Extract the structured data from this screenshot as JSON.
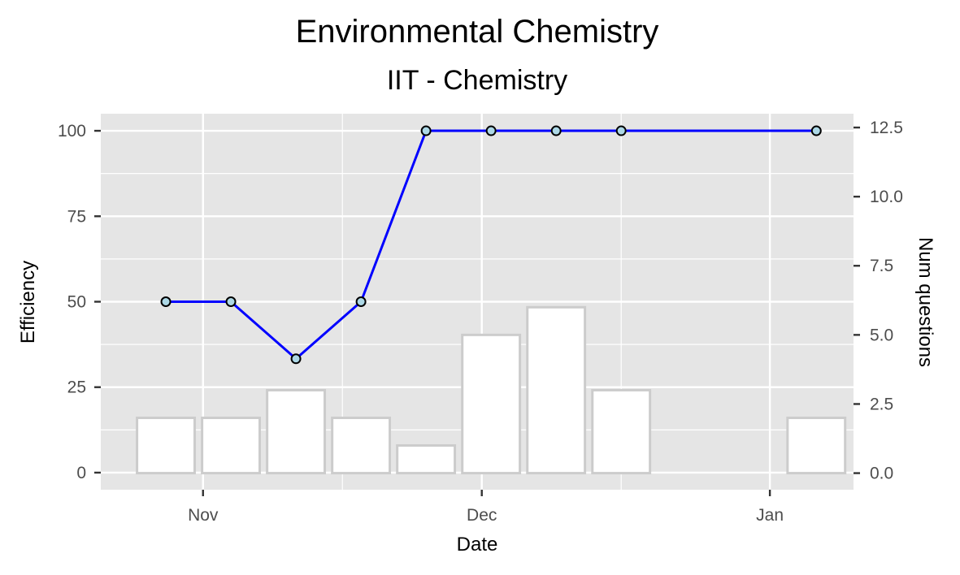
{
  "chart_data": {
    "type": "bar+line",
    "title": "Environmental Chemistry",
    "subtitle": "IIT - Chemistry",
    "xlabel": "Date",
    "ylabel_left": "Efficiency",
    "ylabel_right": "Num questions",
    "x_ticks": [
      "Nov",
      "Dec",
      "Jan"
    ],
    "y_left_ticks": [
      "0",
      "25",
      "50",
      "75",
      "100"
    ],
    "y_right_ticks": [
      "0.0",
      "2.5",
      "5.0",
      "7.5",
      "10.0",
      "12.5"
    ],
    "y_left_range": [
      -5,
      105
    ],
    "y_right_range": [
      -0.6,
      13
    ],
    "x_range": [
      "2017-10-21",
      "2018-01-10"
    ],
    "grid": true,
    "bars": {
      "name": "Num questions",
      "x": [
        "2017-10-28",
        "2017-11-04",
        "2017-11-11",
        "2017-11-18",
        "2017-11-25",
        "2017-12-02",
        "2017-12-09",
        "2017-12-16",
        "2018-01-06"
      ],
      "values": [
        2,
        2,
        3,
        2,
        1,
        5,
        6,
        3,
        2
      ],
      "fill": "#ffffff",
      "stroke": "#cccccc"
    },
    "line": {
      "name": "Efficiency",
      "x": [
        "2017-10-28",
        "2017-11-04",
        "2017-11-11",
        "2017-11-18",
        "2017-11-25",
        "2017-12-02",
        "2017-12-09",
        "2017-12-16",
        "2018-01-06"
      ],
      "values": [
        50,
        50,
        33.3,
        50,
        100,
        100,
        100,
        100,
        100
      ],
      "color": "#0000ff",
      "point_fill": "#add8e6"
    },
    "panel_color": "#e5e5e5"
  }
}
